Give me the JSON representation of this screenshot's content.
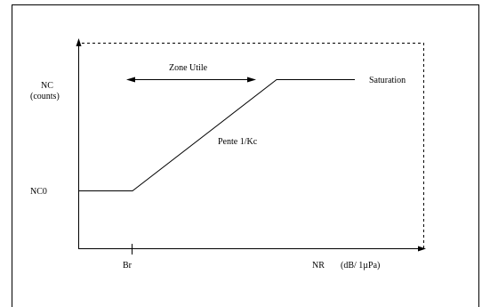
{
  "labels": {
    "y_axis_title": "NC",
    "y_axis_unit": "(counts)",
    "nc0": "NC0",
    "zone_utile": "Zone Utile",
    "saturation": "Saturation",
    "pente": "Pente 1/Kc",
    "br": "Br",
    "x_axis_title": "NR",
    "x_axis_unit": "(dB/ 1µPa)"
  },
  "colors": {
    "line": "#000000",
    "frame": "#000000",
    "background": "#ffffff"
  }
}
